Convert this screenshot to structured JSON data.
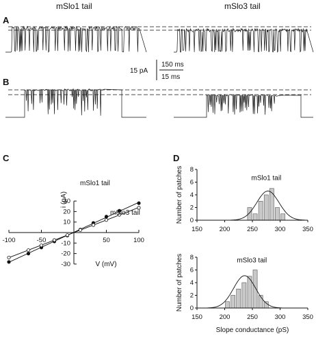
{
  "headers": {
    "left": "mSlo1 tail",
    "right": "mSlo3 tail"
  },
  "panels": {
    "a": "A",
    "b": "B",
    "c": "C",
    "d": "D"
  },
  "scale_bar": {
    "current": "15 pA",
    "time_a": "150 ms",
    "time_b": "15 ms"
  },
  "chart_data": [
    {
      "type": "scatter",
      "panel": "C",
      "xlabel": "V (mV)",
      "ylabel": "i (pA)",
      "xlim": [
        -100,
        100
      ],
      "ylim": [
        -30,
        30
      ],
      "xticks": [
        -100,
        -50,
        50,
        100
      ],
      "yticks": [
        -30,
        -20,
        -10,
        10,
        20,
        30
      ],
      "series": [
        {
          "name": "mSlo1 tail",
          "marker": "filled",
          "x": [
            -100,
            -70,
            -50,
            -30,
            -10,
            10,
            30,
            50,
            70,
            100
          ],
          "y": [
            -28,
            -20,
            -14.2,
            -8.4,
            -2.8,
            2.8,
            9.2,
            15.2,
            20.8,
            28
          ]
        },
        {
          "name": "mSlo3 tail",
          "marker": "open",
          "x": [
            -100,
            -70,
            -50,
            -30,
            -10,
            10,
            30,
            50,
            70,
            100
          ],
          "y": [
            -23.8,
            -16.8,
            -12.2,
            -7.2,
            -2.4,
            2.4,
            7.2,
            12,
            17,
            23.6
          ]
        }
      ]
    },
    {
      "type": "bar",
      "panel": "D-top",
      "annotation": "mSlo1 tail",
      "xlabel": "",
      "ylabel": "Number of patches",
      "xlim": [
        150,
        350
      ],
      "ylim": [
        0,
        8
      ],
      "xticks": [
        150,
        200,
        250,
        300,
        350
      ],
      "yticks": [
        0,
        2,
        4,
        6,
        8
      ],
      "bin_width": 10,
      "bin_starts": [
        240,
        250,
        260,
        270,
        280,
        290,
        300
      ],
      "values": [
        2,
        1,
        3,
        4,
        5,
        2,
        1
      ],
      "fit": {
        "kind": "gaussian",
        "mean": 278,
        "sd": 20,
        "peak": 4.6
      }
    },
    {
      "type": "bar",
      "panel": "D-bottom",
      "annotation": "mSlo3 tail",
      "xlabel": "Slope conductance (pS)",
      "ylabel": "Number of patches",
      "xlim": [
        150,
        350
      ],
      "ylim": [
        0,
        8
      ],
      "xticks": [
        150,
        200,
        250,
        300,
        350
      ],
      "yticks": [
        0,
        2,
        4,
        6,
        8
      ],
      "bin_width": 10,
      "bin_starts": [
        200,
        210,
        220,
        230,
        240,
        250,
        260,
        270
      ],
      "values": [
        1,
        2,
        3,
        4,
        5,
        6,
        2,
        1
      ],
      "fit": {
        "kind": "gaussian",
        "mean": 236,
        "sd": 20,
        "peak": 5.1
      }
    }
  ]
}
